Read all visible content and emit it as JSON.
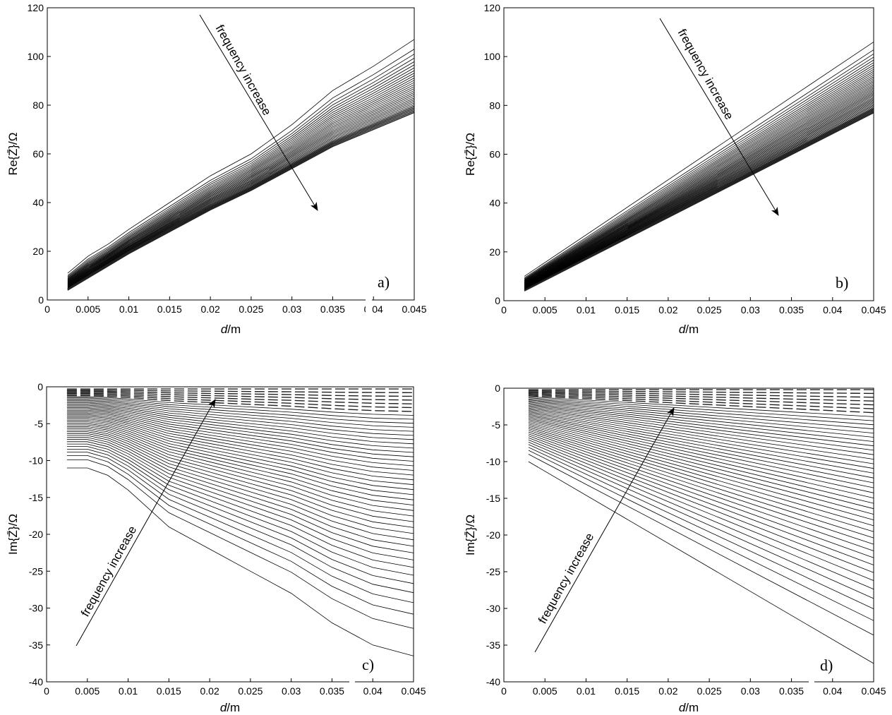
{
  "chart_data": [
    {
      "type": "line",
      "panel_label": "a)",
      "xlabel": "d/m",
      "ylabel": "Re{Z̄}/Ω",
      "xlim": [
        0,
        0.045
      ],
      "ylim": [
        0,
        120
      ],
      "xticks": [
        "0",
        "0.005",
        "0.01",
        "0.015",
        "0.02",
        "0.025",
        "0.03",
        "0.035",
        "0.04",
        "0.045"
      ],
      "yticks": [
        "0",
        "20",
        "40",
        "60",
        "80",
        "100",
        "120"
      ],
      "annotation": "frequency increase",
      "arrow_direction": "down-right",
      "x": [
        0.0025,
        0.005,
        0.0075,
        0.01,
        0.015,
        0.02,
        0.025,
        0.03,
        0.035,
        0.04,
        0.045
      ],
      "series_count": 30,
      "first_series": [
        11,
        18,
        23,
        29,
        40,
        51,
        60,
        72,
        86,
        96,
        107
      ],
      "last_series": [
        4,
        9,
        14,
        19,
        28,
        37,
        45,
        54,
        63,
        70,
        77
      ],
      "grid": false,
      "legend": "none"
    },
    {
      "type": "line",
      "panel_label": "b)",
      "xlabel": "d/m",
      "ylabel": "Re{Z̄}/Ω",
      "xlim": [
        0,
        0.045
      ],
      "ylim": [
        0,
        120
      ],
      "xticks": [
        "0",
        "0.005",
        "0.01",
        "0.015",
        "0.02",
        "0.025",
        "0.03",
        "0.035",
        "0.04",
        "0.045"
      ],
      "yticks": [
        "0",
        "20",
        "40",
        "60",
        "80",
        "100",
        "120"
      ],
      "annotation": "frequency increase",
      "arrow_direction": "down-right",
      "x": [
        0.0025,
        0.045
      ],
      "series_count": 40,
      "first_series": [
        10,
        106
      ],
      "last_series": [
        4,
        77
      ],
      "grid": false,
      "legend": "none"
    },
    {
      "type": "line",
      "panel_label": "c)",
      "xlabel": "d/m",
      "ylabel": "Im{Z̄}/Ω",
      "xlim": [
        0,
        0.045
      ],
      "ylim": [
        -40,
        0
      ],
      "xticks": [
        "0",
        "0.005",
        "0.01",
        "0.015",
        "0.02",
        "0.025",
        "0.03",
        "0.035",
        "0.04",
        "0.045"
      ],
      "yticks": [
        "0",
        "-5",
        "-10",
        "-15",
        "-20",
        "-25",
        "-30",
        "-35",
        "-40"
      ],
      "annotation": "frequency increase",
      "arrow_direction": "up-right",
      "x": [
        0.0025,
        0.005,
        0.0075,
        0.01,
        0.015,
        0.02,
        0.025,
        0.03,
        0.035,
        0.04,
        0.045
      ],
      "series_count": 45,
      "first_series": [
        -11,
        -11,
        -12,
        -14,
        -19,
        -22,
        -25,
        -28,
        -32,
        -35,
        -36.5
      ],
      "last_series": [
        -0.3,
        -0.3,
        -0.3,
        -0.3,
        -0.3,
        -0.3,
        -0.3,
        -0.3,
        -0.3,
        -0.3,
        -0.3
      ],
      "grid": false,
      "legend": "none"
    },
    {
      "type": "line",
      "panel_label": "d)",
      "xlabel": "d/m",
      "ylabel": "Im{Z̄}/Ω",
      "xlim": [
        0,
        0.045
      ],
      "ylim": [
        -40,
        0
      ],
      "xticks": [
        "0",
        "0.005",
        "0.01",
        "0.015",
        "0.02",
        "0.025",
        "0.03",
        "0.035",
        "0.04",
        "0.045"
      ],
      "yticks": [
        "0",
        "-5",
        "-10",
        "-15",
        "-20",
        "-25",
        "-30",
        "-35",
        "-40"
      ],
      "annotation": "frequency increase",
      "arrow_direction": "up-right",
      "x": [
        0.003,
        0.045
      ],
      "series_count": 45,
      "first_series": [
        -10,
        -37.5
      ],
      "last_series": [
        -0.2,
        -0.2
      ],
      "grid": false,
      "legend": "none"
    }
  ]
}
